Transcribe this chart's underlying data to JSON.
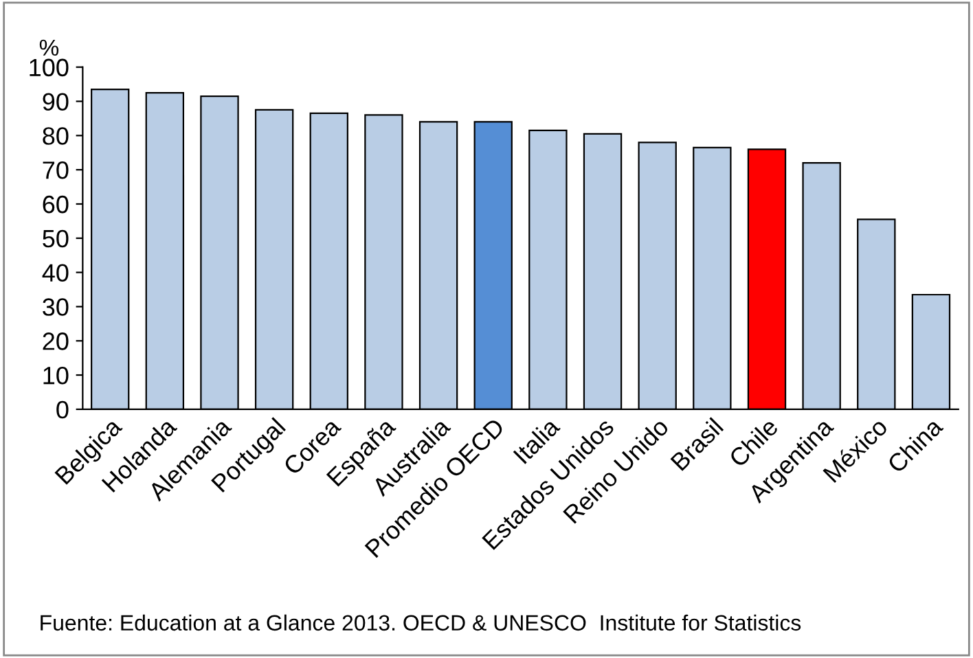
{
  "chart_data": {
    "type": "bar",
    "ylabel": "%",
    "categories": [
      "Belgica",
      "Holanda",
      "Alemania",
      "Portugal",
      "Corea",
      "España",
      "Australia",
      "Promedio OECD",
      "Italia",
      "Estados Unidos",
      "Reino Unido",
      "Brasil",
      "Chile",
      "Argentina",
      "México",
      "China"
    ],
    "values": [
      93.5,
      92.5,
      91.5,
      87.5,
      86.5,
      86,
      84,
      84,
      81.5,
      80.5,
      78,
      76.5,
      76,
      72,
      55.5,
      33.5
    ],
    "colors": [
      "#b9cde5",
      "#b9cde5",
      "#b9cde5",
      "#b9cde5",
      "#b9cde5",
      "#b9cde5",
      "#b9cde5",
      "#558ed5",
      "#b9cde5",
      "#b9cde5",
      "#b9cde5",
      "#b9cde5",
      "#ff0000",
      "#b9cde5",
      "#b9cde5",
      "#b9cde5"
    ],
    "ylim": [
      0,
      100
    ],
    "yticks": [
      0,
      10,
      20,
      30,
      40,
      50,
      60,
      70,
      80,
      90,
      100
    ],
    "grid": false,
    "legend": false,
    "annotations": [
      "Fuente: Education at a Glance 2013. OECD & UNESCO  Institute for Statistics"
    ]
  }
}
